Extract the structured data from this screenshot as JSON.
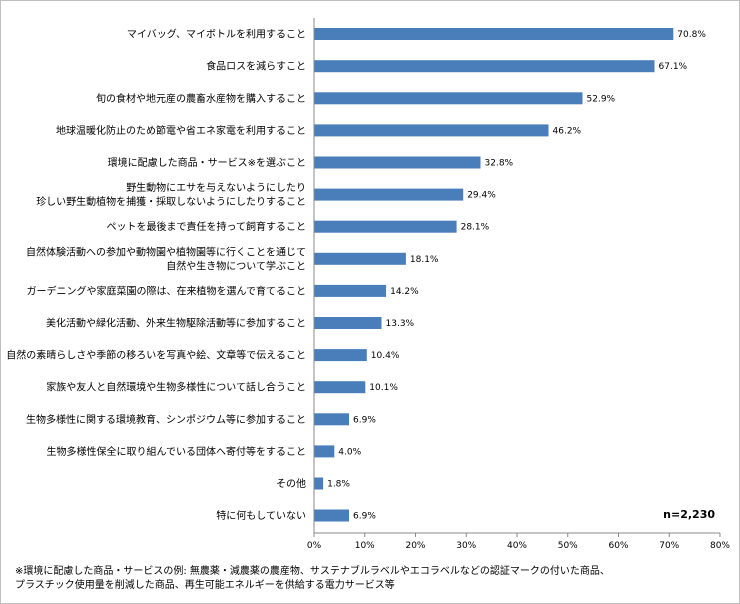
{
  "chart_data": {
    "type": "bar",
    "orientation": "horizontal",
    "categories": [
      [
        "マイバッグ、マイボトルを利用すること"
      ],
      [
        "食品ロスを減らすこと"
      ],
      [
        "旬の食材や地元産の農畜水産物を購入すること"
      ],
      [
        "地球温暖化防止のため節電や省エネ家電を利用すること"
      ],
      [
        "環境に配慮した商品・サービス※を選ぶこと"
      ],
      [
        "野生動物にエサを与えないようにしたり",
        "珍しい野生動植物を捕獲・採取しないようにしたりすること"
      ],
      [
        "ペットを最後まで責任を持って飼育すること"
      ],
      [
        "自然体験活動への参加や動物園や植物園等に行くことを通じて",
        "自然や生き物について学ぶこと"
      ],
      [
        "ガーデニングや家庭菜園の際は、在来植物を選んで育てること"
      ],
      [
        "美化活動や緑化活動、外来生物駆除活動等に参加すること"
      ],
      [
        "自然の素晴らしさや季節の移ろいを写真や絵、文章等で伝えること"
      ],
      [
        "家族や友人と自然環境や生物多様性について話し合うこと"
      ],
      [
        "生物多様性に関する環境教育、シンポジウム等に参加すること"
      ],
      [
        "生物多様性保全に取り組んでいる団体へ寄付等をすること"
      ],
      [
        "その他"
      ],
      [
        "特に何もしていない"
      ]
    ],
    "values": [
      70.8,
      67.1,
      52.9,
      46.2,
      32.8,
      29.4,
      28.1,
      18.1,
      14.2,
      13.3,
      10.4,
      10.1,
      6.9,
      4.0,
      1.8,
      6.9
    ],
    "value_labels": [
      "70.8%",
      "67.1%",
      "52.9%",
      "46.2%",
      "32.8%",
      "29.4%",
      "28.1%",
      "18.1%",
      "14.2%",
      "13.3%",
      "10.4%",
      "10.1%",
      "6.9%",
      "4.0%",
      "1.8%",
      "6.9%"
    ],
    "xlim": [
      0,
      80
    ],
    "xticks": [
      "0%",
      "10%",
      "20%",
      "30%",
      "40%",
      "50%",
      "60%",
      "70%",
      "80%"
    ],
    "grid": false,
    "bar_color": "#4a7ebb",
    "annotation": "n=2,230"
  },
  "footnote": {
    "line1": "※環境に配慮した商品・サービスの例: 無農薬・減農薬の農産物、サステナブルラベルやエコラベルなどの認証マークの付いた商品、",
    "line2": "プラスチック使用量を削減した商品、再生可能エネルギーを供給する電力サービス等"
  }
}
